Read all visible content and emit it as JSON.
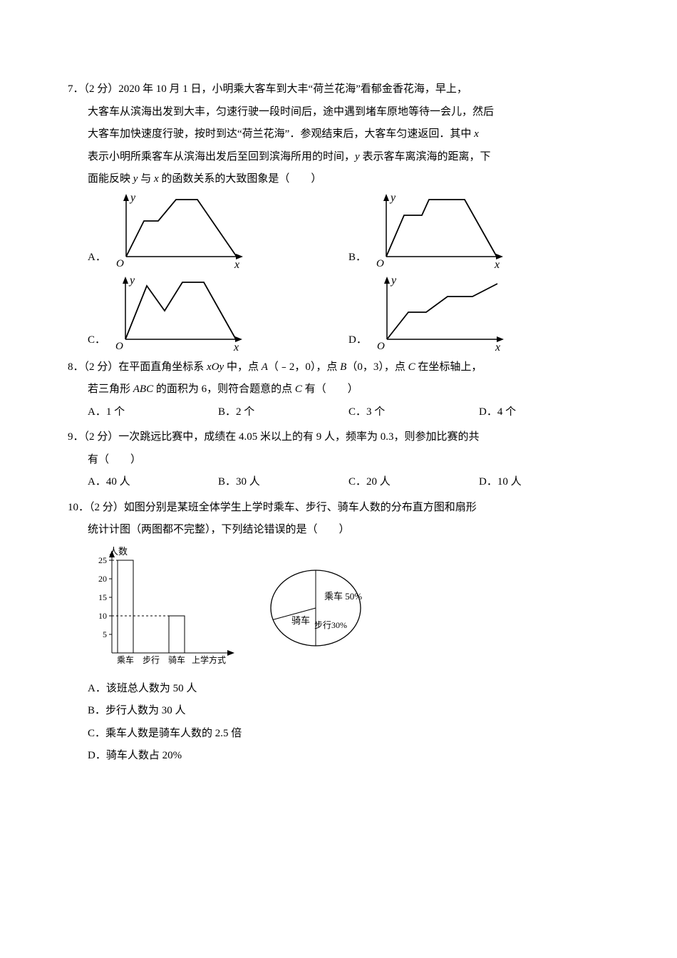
{
  "q7": {
    "number": "7．",
    "points": "（2 分）",
    "text1": "2020 年 10 月 1 日，小明乘大客车到大丰“荷兰花海”看郁金香花海，早上，",
    "text2": "大客车从滨海出发到大丰，匀速行驶一段时间后，途中遇到堵车原地等待一会儿，然后",
    "text3": "大客车加快速度行驶，按时到达“荷兰花海”．参观结束后，大客车匀速返回．其中 ",
    "text3b": "表示小明所乘客车从滨海出发后至回到滨海所用的时间，",
    "text3c": " 表示客车离滨海的距离，下",
    "text4": "面能反映 ",
    "text4b": " 与 ",
    "text4c": " 的函数关系的大致图象是（　　）",
    "x": "x",
    "y": "y",
    "optA": "A．",
    "optB": "B．",
    "optC": "C．",
    "optD": "D．",
    "graphs": {
      "axis_y_label": "y",
      "axis_x_label": "x",
      "origin_label": "O",
      "colors": {
        "line": "#000",
        "bg": "#fff"
      },
      "A": {
        "points": [
          [
            0,
            0
          ],
          [
            25,
            50
          ],
          [
            45,
            50
          ],
          [
            70,
            80
          ],
          [
            100,
            80
          ],
          [
            155,
            0
          ]
        ]
      },
      "B": {
        "points": [
          [
            0,
            0
          ],
          [
            25,
            58
          ],
          [
            50,
            58
          ],
          [
            60,
            80
          ],
          [
            110,
            80
          ],
          [
            155,
            0
          ]
        ]
      },
      "C": {
        "points": [
          [
            0,
            0
          ],
          [
            30,
            75
          ],
          [
            55,
            40
          ],
          [
            80,
            80
          ],
          [
            110,
            80
          ],
          [
            155,
            0
          ]
        ]
      },
      "D": {
        "points": [
          [
            0,
            0
          ],
          [
            30,
            38
          ],
          [
            55,
            38
          ],
          [
            85,
            60
          ],
          [
            120,
            60
          ],
          [
            155,
            78
          ]
        ]
      }
    }
  },
  "q8": {
    "number": "8．",
    "points": "（2 分）",
    "text1": "在平面直角坐标系 ",
    "xOy": "xOy",
    "text2": " 中，点 ",
    "A": "A",
    "coordA": "（﹣2，0），点 ",
    "B": "B",
    "coordB": "（0，3），点 ",
    "C": "C",
    "text3": " 在坐标轴上，",
    "text4": "若三角形 ",
    "ABC": "ABC",
    "text5": " 的面积为 6，则符合题意的点 ",
    "C2": "C",
    "text6": " 有（　　）",
    "optA": "A．1 个",
    "optB": "B．2 个",
    "optC": "C．3 个",
    "optD": "D．4 个"
  },
  "q9": {
    "number": "9．",
    "points": "（2 分）",
    "text1": "一次跳远比赛中，成绩在 4.05 米以上的有 9 人，频率为 0.3，则参加比赛的共",
    "text2": "有（　　）",
    "optA": "A．40 人",
    "optB": "B．30 人",
    "optC": "C．20 人",
    "optD": "D．10 人"
  },
  "q10": {
    "number": "10．",
    "points": "（2 分）",
    "text1": "如图分别是某班全体学生上学时乘车、步行、骑车人数的分布直方图和扇形",
    "text2": "统计计图（两图都不完整），下列结论错误的是（　　）",
    "bar": {
      "y_label": "人数",
      "x_label": "上学方式",
      "categories": [
        "乘车",
        "步行",
        "骑车"
      ],
      "values": [
        25,
        null,
        10
      ],
      "dashed_y": 10,
      "yticks": [
        5,
        10,
        15,
        20,
        25
      ],
      "bar_color": "#ffffff",
      "border_color": "#000",
      "width": 170,
      "height": 150
    },
    "pie": {
      "slices": [
        {
          "label": "乘车 50%",
          "pct": 50
        },
        {
          "label": "骑车",
          "pct": 20
        },
        {
          "label": "步行30%",
          "pct": 30
        }
      ],
      "radius": 55,
      "border_color": "#000"
    },
    "optA": "A．该班总人数为 50 人",
    "optB": "B．步行人数为 30 人",
    "optC": "C．乘车人数是骑车人数的 2.5 倍",
    "optD": "D．骑车人数占 20%"
  }
}
